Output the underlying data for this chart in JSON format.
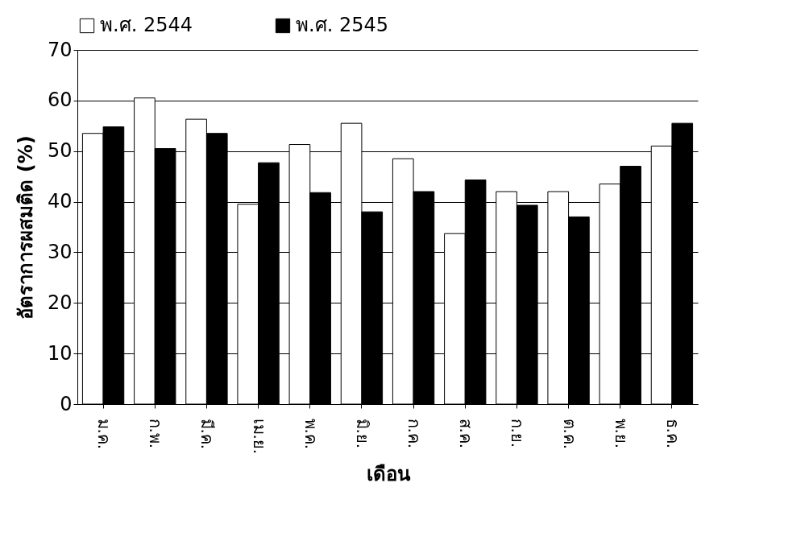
{
  "chart_data": {
    "type": "bar",
    "xlabel": "เดือน",
    "ylabel": "อัตราการผสมติด (%)",
    "categories": [
      "ม.ค.",
      "ก.พ.",
      "มี.ค.",
      "เม.ย.",
      "พ.ค.",
      "มิ.ย.",
      "ก.ค.",
      "ส.ค.",
      "ก.ย.",
      "ต.ค.",
      "พ.ย.",
      "ธ.ค."
    ],
    "series": [
      {
        "name": "พ.ศ. 2544",
        "color": "#ffffff",
        "values": [
          53.5,
          60.5,
          56.3,
          39.5,
          51.3,
          55.5,
          48.5,
          33.7,
          42,
          42,
          43.5,
          51
        ]
      },
      {
        "name": "พ.ศ. 2545",
        "color": "#000000",
        "values": [
          54.8,
          50.5,
          53.5,
          47.7,
          41.8,
          38,
          42,
          44.3,
          39.3,
          37,
          47,
          55.5
        ]
      }
    ],
    "ylim": [
      0,
      70
    ],
    "yticks": [
      0,
      10,
      20,
      30,
      40,
      50,
      60,
      70
    ],
    "grid": "y",
    "legend": "top"
  }
}
